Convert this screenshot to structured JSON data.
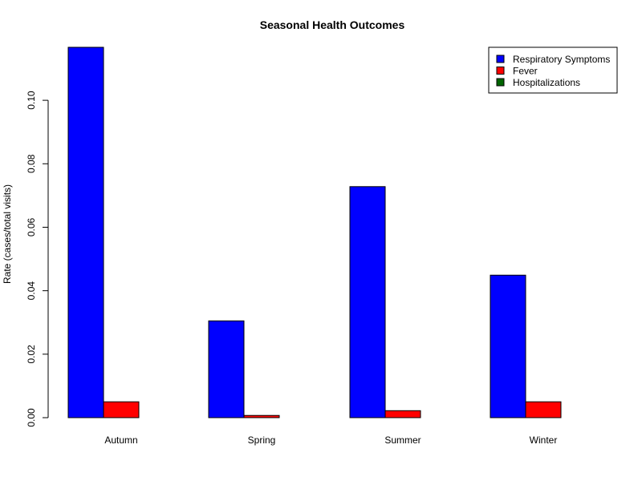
{
  "chart_data": {
    "type": "bar",
    "title": "Seasonal Health Outcomes",
    "xlabel": "",
    "ylabel": "Rate (cases/total visits)",
    "categories": [
      "Autumn",
      "Spring",
      "Summer",
      "Winter"
    ],
    "series": [
      {
        "name": "Respiratory Symptoms",
        "color": "#0000ff",
        "values": [
          0.1167,
          0.0305,
          0.0728,
          0.0449
        ]
      },
      {
        "name": "Fever",
        "color": "#ff0000",
        "values": [
          0.005,
          0.0007,
          0.0022,
          0.005
        ]
      },
      {
        "name": "Hospitalizations",
        "color": "#006400",
        "values": [
          0.0,
          0.0,
          0.0,
          0.0
        ]
      }
    ],
    "ylim": [
      0,
      0.1167
    ],
    "yticks": [
      0.0,
      0.02,
      0.04,
      0.06,
      0.08,
      0.1
    ],
    "ytick_labels": [
      "0.00",
      "0.02",
      "0.04",
      "0.06",
      "0.08",
      "0.10"
    ],
    "grid": false,
    "legend_position": "top-right"
  }
}
